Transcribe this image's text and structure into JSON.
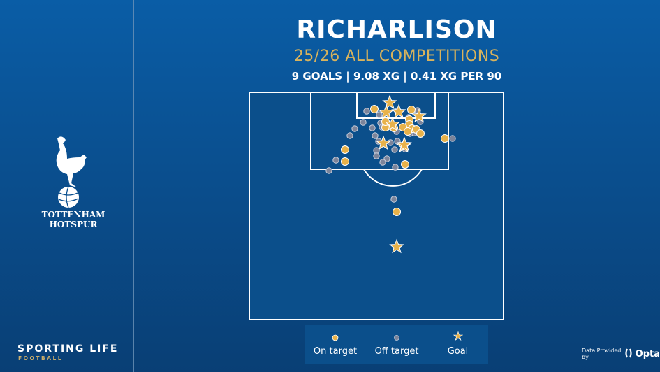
{
  "header": {
    "title": "RICHARLISON",
    "subtitle": "25/26 ALL COMPETITIONS",
    "stats": "9 GOALS | 9.08 XG | 0.41 XG PER 90"
  },
  "club": {
    "line1": "TOTTENHAM",
    "line2": "HOTSPUR"
  },
  "legend": {
    "on_target": "On target",
    "off_target": "Off target",
    "goal": "Goal"
  },
  "footer": {
    "brand": "SPORTING LIFE",
    "brand_sub": "FOOTBALL",
    "data_provider_label": "Data Provided by",
    "data_provider": "Opta"
  },
  "colors": {
    "on_target": "#e8b24a",
    "off_target": "#7c849a",
    "goal": "#e8b24a",
    "pitch": "#0b4f8b",
    "lines": "#ffffff",
    "subtitle": "#d9b35c"
  },
  "chart_data": {
    "type": "scatter",
    "title": "RICHARLISON",
    "subtitle": "25/26 ALL COMPETITIONS — 9 GOALS | 9.08 XG | 0.41 XG PER 90",
    "xlabel": "",
    "ylabel": "",
    "coordinate_note": "x,y in pixel coords relative to pitch-half box (0..366, 0..327), goal line at top",
    "legend": [
      "On target",
      "Off target",
      "Goal"
    ],
    "legend_position": "bottom",
    "series": [
      {
        "name": "Goal",
        "marker": "star",
        "points": [
          [
            202,
            16
          ],
          [
            197,
            30
          ],
          [
            215,
            29
          ],
          [
            244,
            35
          ],
          [
            206,
            47
          ],
          [
            193,
            74
          ],
          [
            222,
            78
          ],
          [
            212,
            222
          ],
          [
            223,
            76
          ]
        ]
      },
      {
        "name": "On target",
        "marker": "circle",
        "points": [
          [
            180,
            25
          ],
          [
            233,
            26
          ],
          [
            230,
            40
          ],
          [
            230,
            47
          ],
          [
            234,
            53
          ],
          [
            196,
            51
          ],
          [
            208,
            52
          ],
          [
            221,
            51
          ],
          [
            240,
            54
          ],
          [
            246,
            60
          ],
          [
            196,
            43
          ],
          [
            228,
            57
          ],
          [
            281,
            67
          ],
          [
            138,
            83
          ],
          [
            138,
            100
          ],
          [
            224,
            104
          ],
          [
            212,
            172
          ]
        ]
      },
      {
        "name": "Off target",
        "marker": "circle",
        "points": [
          [
            169,
            28
          ],
          [
            187,
            33
          ],
          [
            213,
            28
          ],
          [
            242,
            27
          ],
          [
            229,
            37
          ],
          [
            246,
            43
          ],
          [
            164,
            44
          ],
          [
            177,
            52
          ],
          [
            189,
            45
          ],
          [
            191,
            51
          ],
          [
            152,
            53
          ],
          [
            145,
            63
          ],
          [
            181,
            63
          ],
          [
            186,
            71
          ],
          [
            198,
            47
          ],
          [
            212,
            57
          ],
          [
            237,
            59
          ],
          [
            231,
            60
          ],
          [
            213,
            71
          ],
          [
            203,
            73
          ],
          [
            183,
            84
          ],
          [
            209,
            83
          ],
          [
            198,
            96
          ],
          [
            183,
            92
          ],
          [
            192,
            101
          ],
          [
            210,
            108
          ],
          [
            125,
            98
          ],
          [
            115,
            113
          ],
          [
            292,
            67
          ],
          [
            208,
            154
          ],
          [
            224,
            82
          ]
        ]
      }
    ]
  }
}
